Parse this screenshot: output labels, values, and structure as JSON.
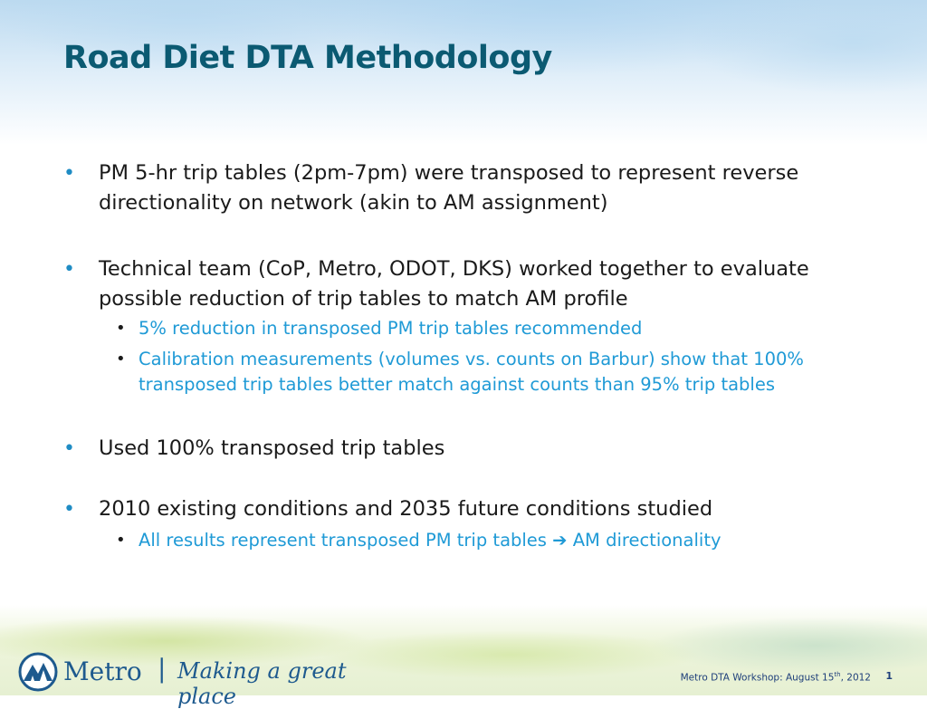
{
  "slide": {
    "title": "Road Diet DTA Methodology",
    "bullets": [
      {
        "text": "PM 5-hr trip tables (2pm-7pm) were transposed to represent reverse directionality on network (akin to AM assignment)"
      },
      {
        "text": "Technical team (CoP, Metro, ODOT, DKS) worked together to evaluate possible reduction of trip tables to match AM profile",
        "subs": [
          "5% reduction in transposed PM trip tables recommended",
          "Calibration measurements (volumes vs. counts on Barbur) show that 100% transposed trip tables better match against counts than 95% trip tables"
        ]
      },
      {
        "text": "Used 100% transposed trip tables"
      },
      {
        "text": "2010 existing conditions and 2035 future conditions studied",
        "subs": [
          {
            "before": "All results represent transposed PM trip tables",
            "arrow": "➔",
            "after": "AM directionality"
          }
        ]
      }
    ]
  },
  "branding": {
    "logo_word": "Metro",
    "separator": "|",
    "tagline": "Making a great place"
  },
  "footer": {
    "text_prefix": "Metro DTA Workshop: August 15",
    "superscript": "th",
    "text_suffix": ", 2012",
    "page_number": "1"
  },
  "colors": {
    "title": "#0b5a72",
    "bullet_dot": "#1f8cc4",
    "sub_text": "#1f9ad6",
    "body_text": "#1a1a1a",
    "brand": "#1e5a8e"
  },
  "icons": {
    "bullet": "•",
    "logo": "metro-mountain-logo-icon"
  }
}
